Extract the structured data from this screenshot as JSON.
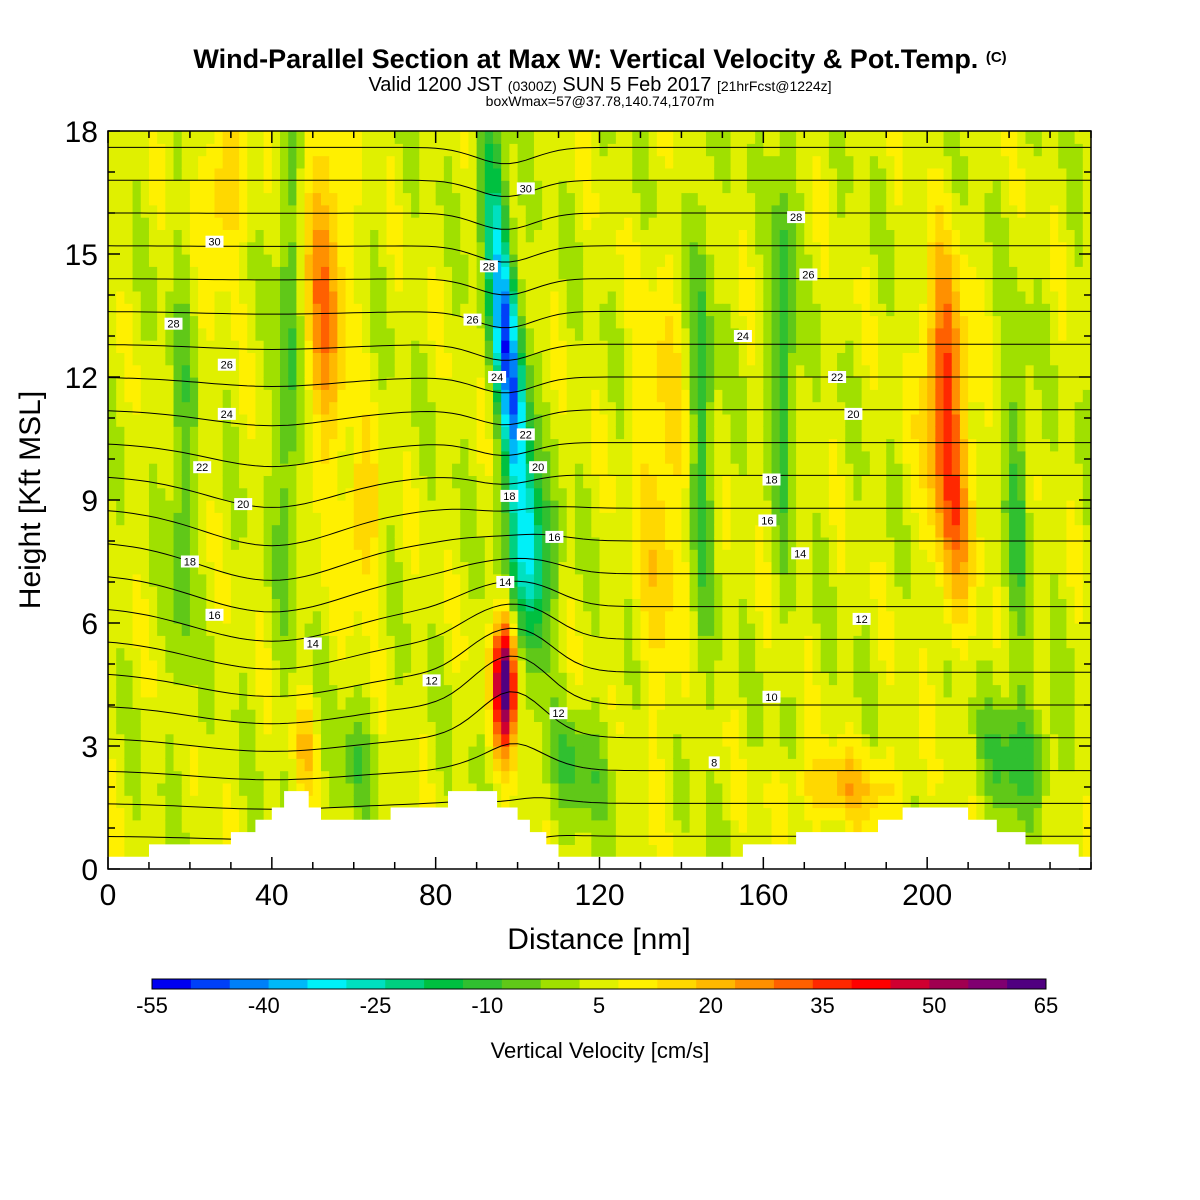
{
  "title": {
    "main": "Wind-Parallel Section at Max W: Vertical Velocity & Pot.Temp.",
    "tag": "(C)"
  },
  "subtitle": {
    "valid": "Valid 1200 JST",
    "utc": "(0300Z)",
    "date": "SUN 5 Feb 2017",
    "forecast": "[21hrFcst@1224z]"
  },
  "subsubtitle": "boxWmax=57@37.78,140.74,1707m",
  "colors": {
    "scale": [
      "#0000f0",
      "#0040f8",
      "#0080f8",
      "#00b8f8",
      "#00f0f8",
      "#00e0c0",
      "#00d080",
      "#00c040",
      "#30c030",
      "#60c818",
      "#a0e000",
      "#e0f000",
      "#fff000",
      "#ffd800",
      "#ffb800",
      "#ff9000",
      "#ff6000",
      "#ff2800",
      "#ff0000",
      "#d00030",
      "#a00050",
      "#800070",
      "#500080"
    ]
  },
  "chart_data": {
    "type": "heatmap",
    "xlabel": "Distance [nm]",
    "ylabel": "Height [Kft MSL]",
    "xlim": [
      0,
      240
    ],
    "ylim": [
      0,
      18
    ],
    "xticks": [
      0,
      40,
      80,
      120,
      160,
      200
    ],
    "yticks": [
      0,
      3,
      6,
      9,
      12,
      15,
      18
    ],
    "colorbar": {
      "label": "Vertical Velocity [cm/s]",
      "min": -55,
      "max": 65,
      "step": 5,
      "tick_labels": [
        -55,
        -40,
        -25,
        -10,
        5,
        20,
        35,
        50,
        65
      ]
    },
    "vertical_velocity_peaks": [
      {
        "x": 97,
        "y": 4.6,
        "w": 57
      },
      {
        "x": 100,
        "y": 12.5,
        "w": -45
      },
      {
        "x": 204,
        "y": 12.0,
        "w": 30
      },
      {
        "x": 53,
        "y": 14.0,
        "w": 25
      }
    ],
    "terrain": [
      [
        0,
        0.3
      ],
      [
        10,
        0.3
      ],
      [
        10,
        0.6
      ],
      [
        30,
        0.6
      ],
      [
        30,
        0.9
      ],
      [
        36,
        0.9
      ],
      [
        36,
        1.2
      ],
      [
        40,
        1.2
      ],
      [
        40,
        1.5
      ],
      [
        43,
        1.5
      ],
      [
        43,
        1.9
      ],
      [
        49,
        1.9
      ],
      [
        49,
        1.5
      ],
      [
        52,
        1.5
      ],
      [
        52,
        1.2
      ],
      [
        69,
        1.2
      ],
      [
        69,
        1.5
      ],
      [
        83,
        1.5
      ],
      [
        83,
        1.9
      ],
      [
        95,
        1.9
      ],
      [
        95,
        1.5
      ],
      [
        100,
        1.5
      ],
      [
        100,
        1.2
      ],
      [
        103,
        1.2
      ],
      [
        103,
        0.9
      ],
      [
        107,
        0.9
      ],
      [
        107,
        0.6
      ],
      [
        110,
        0.6
      ],
      [
        110,
        0.3
      ],
      [
        155,
        0.3
      ],
      [
        155,
        0.6
      ],
      [
        168,
        0.6
      ],
      [
        168,
        0.9
      ],
      [
        188,
        0.9
      ],
      [
        188,
        1.2
      ],
      [
        194,
        1.2
      ],
      [
        194,
        1.5
      ],
      [
        210,
        1.5
      ],
      [
        210,
        1.2
      ],
      [
        217,
        1.2
      ],
      [
        217,
        0.9
      ],
      [
        224,
        0.9
      ],
      [
        224,
        0.6
      ],
      [
        237,
        0.6
      ],
      [
        237,
        0.3
      ],
      [
        240,
        0.3
      ]
    ],
    "theta_contour_labels": [
      {
        "text": "30",
        "x": 26,
        "y": 15.3
      },
      {
        "text": "28",
        "x": 16,
        "y": 13.3
      },
      {
        "text": "26",
        "x": 29,
        "y": 12.3
      },
      {
        "text": "24",
        "x": 29,
        "y": 11.1
      },
      {
        "text": "22",
        "x": 23,
        "y": 9.8
      },
      {
        "text": "20",
        "x": 33,
        "y": 8.9
      },
      {
        "text": "18",
        "x": 20,
        "y": 7.5
      },
      {
        "text": "16",
        "x": 26,
        "y": 6.2
      },
      {
        "text": "14",
        "x": 50,
        "y": 5.5
      },
      {
        "text": "12",
        "x": 79,
        "y": 4.6
      },
      {
        "text": "30",
        "x": 102,
        "y": 16.6
      },
      {
        "text": "28",
        "x": 93,
        "y": 14.7
      },
      {
        "text": "26",
        "x": 89,
        "y": 13.4
      },
      {
        "text": "24",
        "x": 95,
        "y": 12.0
      },
      {
        "text": "22",
        "x": 102,
        "y": 10.6
      },
      {
        "text": "20",
        "x": 105,
        "y": 9.8
      },
      {
        "text": "18",
        "x": 98,
        "y": 9.1
      },
      {
        "text": "16",
        "x": 109,
        "y": 8.1
      },
      {
        "text": "14",
        "x": 97,
        "y": 7.0
      },
      {
        "text": "12",
        "x": 110,
        "y": 3.8
      },
      {
        "text": "28",
        "x": 168,
        "y": 15.9
      },
      {
        "text": "26",
        "x": 171,
        "y": 14.5
      },
      {
        "text": "24",
        "x": 155,
        "y": 13.0
      },
      {
        "text": "22",
        "x": 178,
        "y": 12.0
      },
      {
        "text": "20",
        "x": 182,
        "y": 11.1
      },
      {
        "text": "18",
        "x": 162,
        "y": 9.5
      },
      {
        "text": "16",
        "x": 161,
        "y": 8.5
      },
      {
        "text": "14",
        "x": 169,
        "y": 7.7
      },
      {
        "text": "12",
        "x": 184,
        "y": 6.1
      },
      {
        "text": "10",
        "x": 162,
        "y": 4.2
      },
      {
        "text": "8",
        "x": 148,
        "y": 2.6
      }
    ]
  }
}
